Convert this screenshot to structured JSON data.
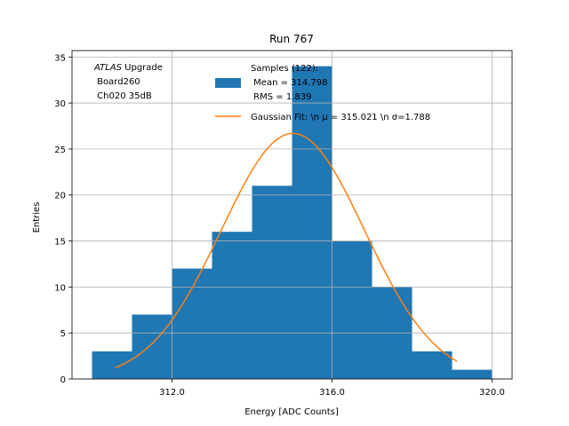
{
  "chart_data": {
    "type": "bar",
    "title": "Run 767",
    "xlabel": "Energy [ADC Counts]",
    "ylabel": "Entries",
    "xlim": [
      309.5,
      320.5
    ],
    "ylim": [
      0,
      35.7
    ],
    "x_ticks": [
      312.0,
      316.0,
      320.0
    ],
    "x_tick_labels": [
      "312.0",
      "316.0",
      "320.0"
    ],
    "y_ticks": [
      0,
      5,
      10,
      15,
      20,
      25,
      30,
      35
    ],
    "y_tick_labels": [
      "0",
      "5",
      "10",
      "15",
      "20",
      "25",
      "30",
      "35"
    ],
    "grid": true,
    "bins": [
      {
        "x0": 310,
        "x1": 311,
        "count": 3
      },
      {
        "x0": 311,
        "x1": 312,
        "count": 7
      },
      {
        "x0": 312,
        "x1": 313,
        "count": 12
      },
      {
        "x0": 313,
        "x1": 314,
        "count": 16
      },
      {
        "x0": 314,
        "x1": 315,
        "count": 21
      },
      {
        "x0": 315,
        "x1": 316,
        "count": 34
      },
      {
        "x0": 316,
        "x1": 317,
        "count": 15
      },
      {
        "x0": 317,
        "x1": 318,
        "count": 10
      },
      {
        "x0": 318,
        "x1": 319,
        "count": 3
      },
      {
        "x0": 319,
        "x1": 320,
        "count": 1
      }
    ],
    "fit": {
      "mu": 315.021,
      "sigma": 1.788,
      "amplitude": 26.7,
      "x_range": [
        310.58,
        319.12
      ]
    },
    "legend": {
      "placement": "top-right",
      "hist_lines": [
        "Samples (122):",
        " Mean = 314.798",
        " RMS = 1.839"
      ],
      "fit_label": "Gaussian Fit: \\n μ = 315.021 \\n σ=1.788"
    },
    "annotation": {
      "italic_part": "ATLAS",
      "line1_rest": " Upgrade",
      "line2": " Board260",
      "line3": " Ch020 35dB"
    },
    "colors": {
      "bar": "#1f77b4",
      "fit": "#ff7f0e",
      "grid": "#b0b0b0"
    }
  }
}
